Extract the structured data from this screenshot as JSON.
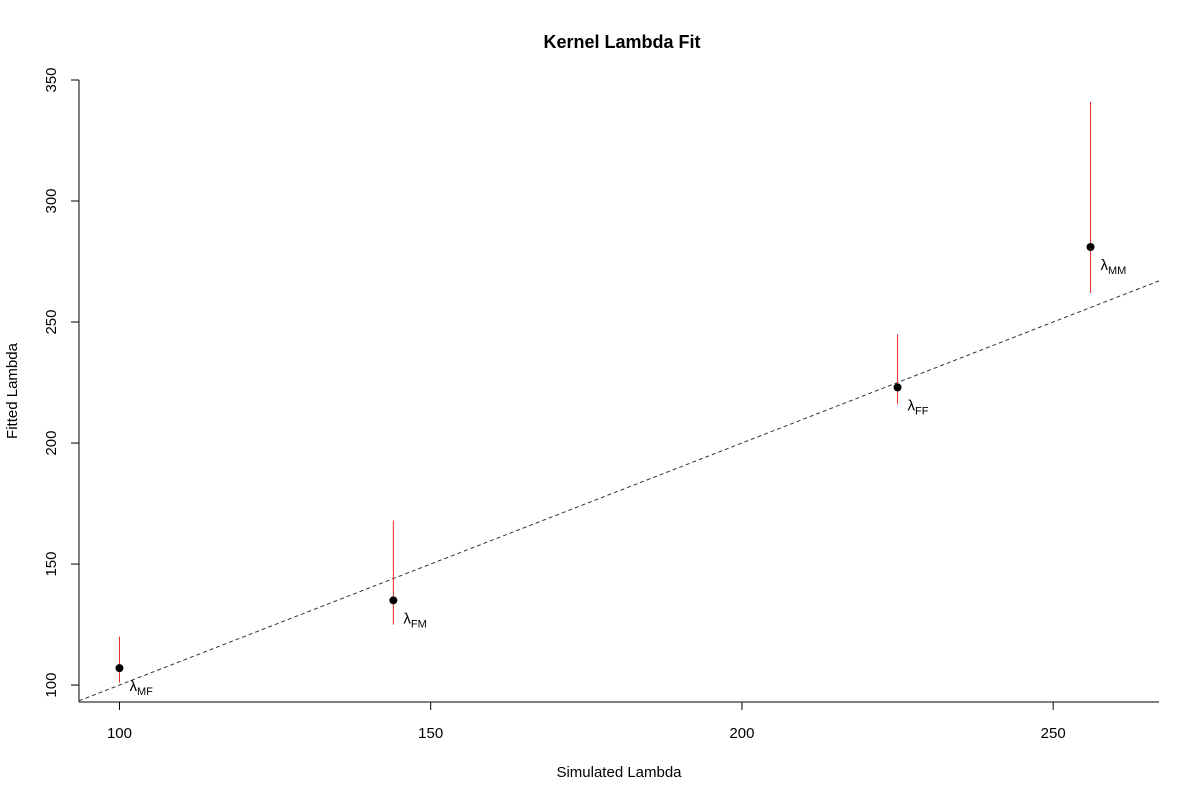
{
  "chart_data": {
    "type": "scatter",
    "title": "Kernel Lambda Fit",
    "xlabel": "Simulated Lambda",
    "ylabel": "Fitted Lambda",
    "xlim": [
      93.5,
      267
    ],
    "ylim": [
      93,
      350
    ],
    "xticks": [
      100,
      150,
      200,
      250
    ],
    "yticks": [
      100,
      150,
      200,
      250,
      300,
      350
    ],
    "reference_line": {
      "type": "identity",
      "style": "dashed",
      "color": "#333333"
    },
    "points": [
      {
        "label": "λ",
        "sub": "MF",
        "x": 100,
        "y": 107,
        "ymin": 101,
        "ymax": 120
      },
      {
        "label": "λ",
        "sub": "FM",
        "x": 144,
        "y": 135,
        "ymin": 125,
        "ymax": 168
      },
      {
        "label": "λ",
        "sub": "FF",
        "x": 225,
        "y": 223,
        "ymin": 216,
        "ymax": 245
      },
      {
        "label": "λ",
        "sub": "MM",
        "x": 256,
        "y": 281,
        "ymin": 262,
        "ymax": 341
      }
    ],
    "colors": {
      "point": "#000000",
      "error_bar": "#e8292a",
      "axis": "#000000"
    }
  }
}
